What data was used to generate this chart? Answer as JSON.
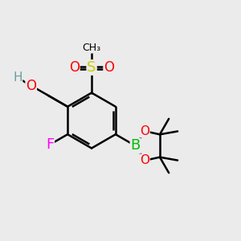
{
  "bg": "#ebebeb",
  "black": "#000000",
  "colors": {
    "H": "#6b9e9e",
    "O": "#ff0000",
    "S": "#cccc00",
    "F": "#ff00ff",
    "B": "#00bb00"
  },
  "lw": 1.8
}
